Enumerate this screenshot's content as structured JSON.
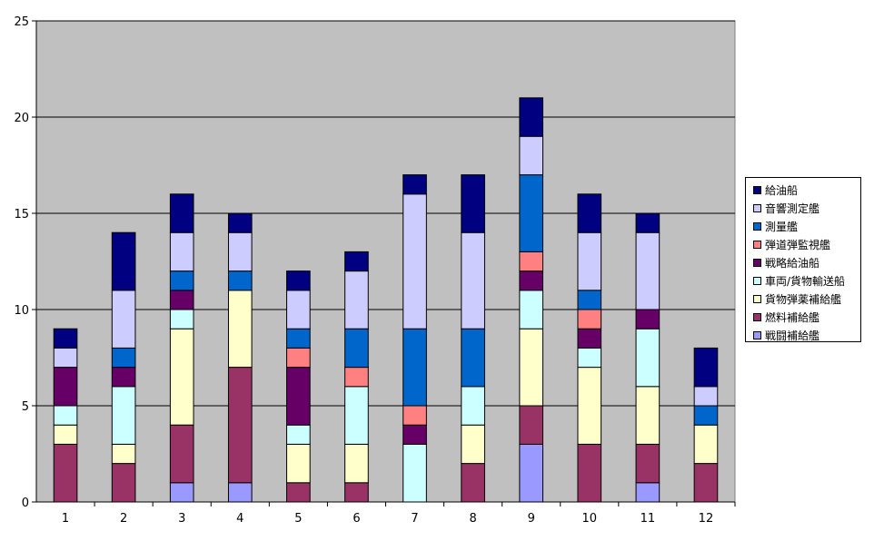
{
  "chart_data": {
    "type": "bar",
    "stacked": true,
    "categories": [
      "1",
      "2",
      "3",
      "4",
      "5",
      "6",
      "7",
      "8",
      "9",
      "10",
      "11",
      "12"
    ],
    "ylim": [
      0,
      25
    ],
    "yticks": [
      0,
      5,
      10,
      15,
      20,
      25
    ],
    "grid": true,
    "legend_position": "right",
    "plot_background": "#C0C0C0",
    "series": [
      {
        "name": "戦闘補給艦",
        "color": "#9999FF",
        "values": [
          0,
          0,
          1,
          1,
          0,
          0,
          0,
          0,
          3,
          0,
          1,
          0
        ]
      },
      {
        "name": "燃料補給艦",
        "color": "#993366",
        "values": [
          3,
          2,
          3,
          6,
          1,
          1,
          0,
          2,
          2,
          3,
          2,
          2
        ]
      },
      {
        "name": "貨物弾薬補給艦",
        "color": "#FFFFCC",
        "values": [
          1,
          1,
          5,
          4,
          2,
          2,
          0,
          2,
          4,
          4,
          3,
          2
        ]
      },
      {
        "name": "車両/貨物輸送船",
        "color": "#CCFFFF",
        "values": [
          1,
          3,
          1,
          0,
          1,
          3,
          3,
          2,
          2,
          1,
          3,
          0
        ]
      },
      {
        "name": "戦略給油船",
        "color": "#660066",
        "values": [
          2,
          1,
          1,
          0,
          3,
          0,
          1,
          0,
          1,
          1,
          1,
          0
        ]
      },
      {
        "name": "弾道弾監視艦",
        "color": "#FF8080",
        "values": [
          0,
          0,
          0,
          0,
          1,
          1,
          1,
          0,
          1,
          1,
          0,
          0
        ]
      },
      {
        "name": "測量艦",
        "color": "#0066CC",
        "values": [
          0,
          1,
          1,
          1,
          1,
          2,
          4,
          3,
          4,
          1,
          0,
          1
        ]
      },
      {
        "name": "音響測定艦",
        "color": "#CCCCFF",
        "values": [
          1,
          3,
          2,
          2,
          2,
          3,
          7,
          5,
          2,
          3,
          4,
          1
        ]
      },
      {
        "name": "給油船",
        "color": "#000080",
        "values": [
          1,
          3,
          2,
          1,
          1,
          1,
          1,
          3,
          2,
          2,
          1,
          2
        ]
      }
    ]
  }
}
